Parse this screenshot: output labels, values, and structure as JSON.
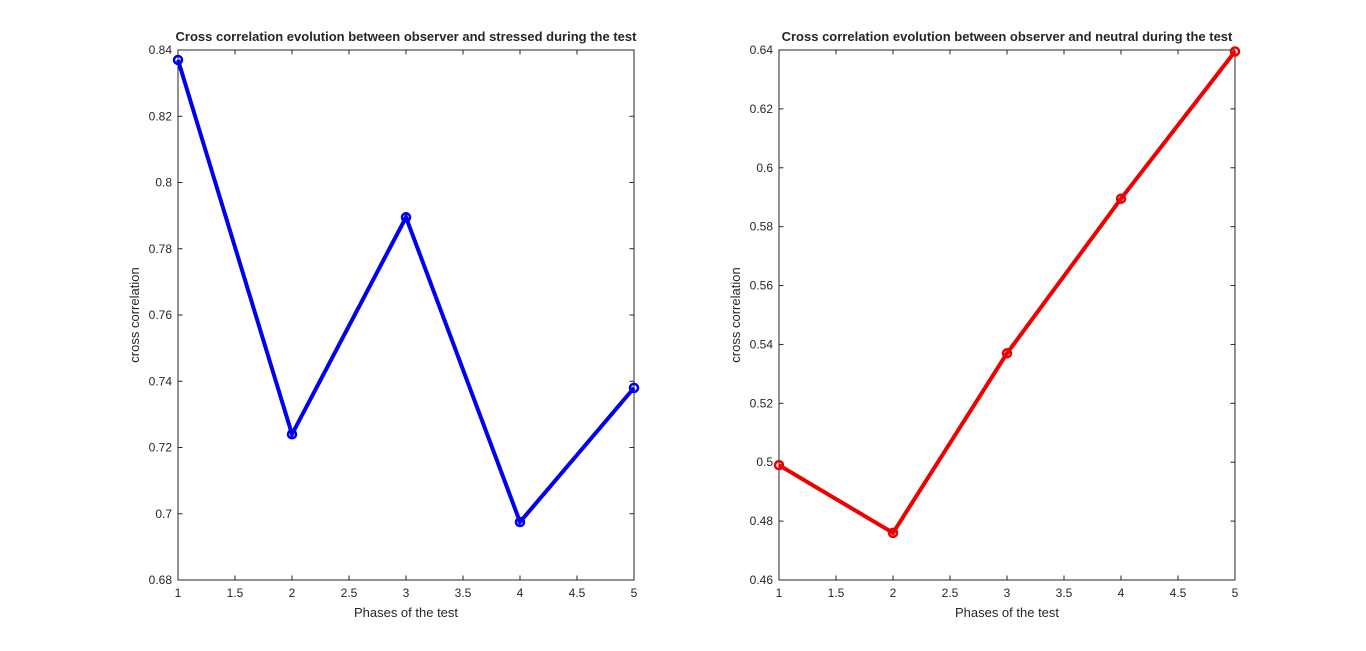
{
  "figure": {
    "background": "#ffffff",
    "axis_color": "#262626"
  },
  "chart_data": [
    {
      "type": "line",
      "title": "Cross correlation evolution between observer and stressed during the test",
      "xlabel": "Phases of the test",
      "ylabel": "cross correlation",
      "xlim": [
        1,
        5
      ],
      "ylim": [
        0.68,
        0.84
      ],
      "xticks": [
        1,
        1.5,
        2,
        2.5,
        3,
        3.5,
        4,
        4.5,
        5
      ],
      "xtick_labels": [
        "1",
        "1.5",
        "2",
        "2.5",
        "3",
        "3.5",
        "4",
        "4.5",
        "5"
      ],
      "yticks": [
        0.68,
        0.7,
        0.72,
        0.74,
        0.76,
        0.78,
        0.8,
        0.82,
        0.84
      ],
      "ytick_labels": [
        "0.68",
        "0.7",
        "0.72",
        "0.74",
        "0.76",
        "0.78",
        "0.8",
        "0.82",
        "0.84"
      ],
      "grid": false,
      "series": [
        {
          "x": [
            1,
            2,
            3,
            4,
            5
          ],
          "y": [
            0.837,
            0.724,
            0.7895,
            0.6975,
            0.738
          ],
          "color": "#0000ee",
          "marker": "circle-open"
        }
      ]
    },
    {
      "type": "line",
      "title": "Cross correlation evolution between observer and neutral during the test",
      "xlabel": "Phases of the test",
      "ylabel": "cross correlation",
      "xlim": [
        1,
        5
      ],
      "ylim": [
        0.46,
        0.64
      ],
      "xticks": [
        1,
        1.5,
        2,
        2.5,
        3,
        3.5,
        4,
        4.5,
        5
      ],
      "xtick_labels": [
        "1",
        "1.5",
        "2",
        "2.5",
        "3",
        "3.5",
        "4",
        "4.5",
        "5"
      ],
      "yticks": [
        0.46,
        0.48,
        0.5,
        0.52,
        0.54,
        0.56,
        0.58,
        0.6,
        0.62,
        0.64
      ],
      "ytick_labels": [
        "0.46",
        "0.48",
        "0.5",
        "0.52",
        "0.54",
        "0.56",
        "0.58",
        "0.6",
        "0.62",
        "0.64"
      ],
      "grid": false,
      "series": [
        {
          "x": [
            1,
            2,
            3,
            4,
            5
          ],
          "y": [
            0.499,
            0.476,
            0.537,
            0.5895,
            0.6395
          ],
          "color": "#ee0000",
          "marker": "circle-open"
        }
      ]
    }
  ]
}
